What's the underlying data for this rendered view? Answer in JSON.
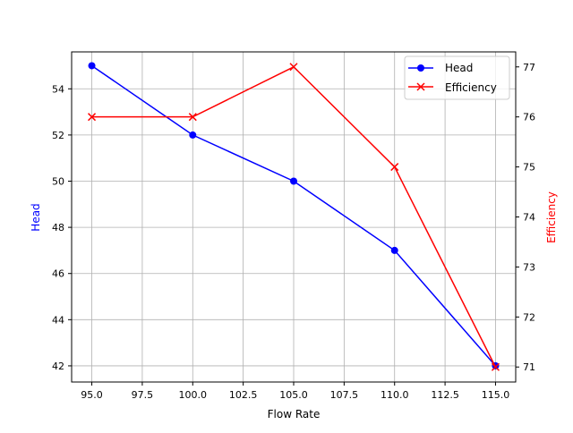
{
  "chart_data": {
    "type": "line",
    "title": "",
    "xlabel": "Flow Rate",
    "ylabel": "Head",
    "y2label": "Efficiency",
    "x": [
      95,
      100,
      105,
      110,
      115
    ],
    "xlim": [
      94,
      116
    ],
    "ylim": [
      41.3,
      55.6
    ],
    "y2lim": [
      70.7,
      77.3
    ],
    "xticks": [
      "95.0",
      "97.5",
      "100.0",
      "102.5",
      "105.0",
      "107.5",
      "110.0",
      "112.5",
      "115.0"
    ],
    "yticks": [
      "42",
      "44",
      "46",
      "48",
      "50",
      "52",
      "54"
    ],
    "y2ticks": [
      "71",
      "72",
      "73",
      "74",
      "75",
      "76",
      "77"
    ],
    "grid": true,
    "legend_position": "upper right",
    "series": [
      {
        "name": "Head",
        "axis": "left",
        "color": "#0000ff",
        "marker": "circle",
        "values": [
          55,
          52,
          50,
          47,
          42
        ]
      },
      {
        "name": "Efficiency",
        "axis": "right",
        "color": "#ff0000",
        "marker": "x",
        "values": [
          76,
          76,
          77,
          75,
          71
        ]
      }
    ]
  }
}
